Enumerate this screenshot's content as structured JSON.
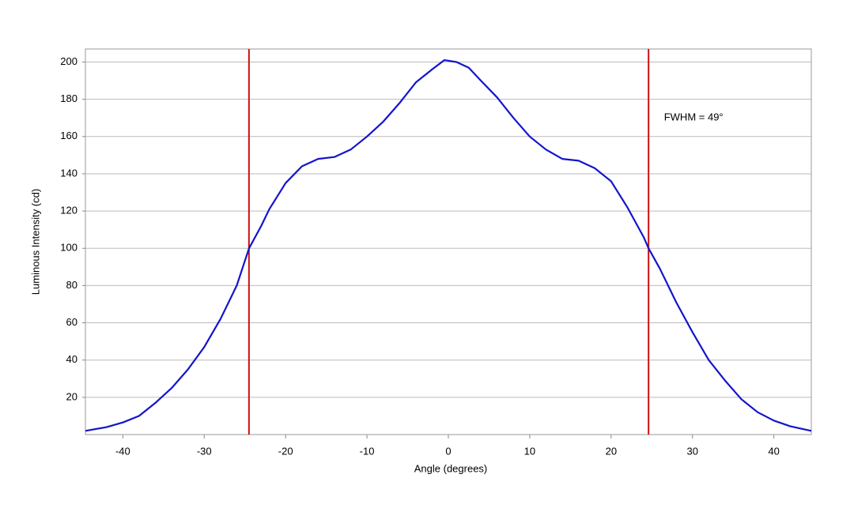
{
  "chart_data": {
    "type": "line",
    "x_label": "Angle (degrees)",
    "y_label": "Luminous Intensity (cd)",
    "annotation": {
      "text": "FWHM = 49°",
      "x": 26.5,
      "y": 170
    },
    "vlines": {
      "color": "#cc1111",
      "x": [
        -24.5,
        24.6
      ]
    },
    "xlim": [
      -44.6,
      44.6
    ],
    "xticks": [
      -40,
      -30,
      -20,
      -10,
      0,
      10,
      20,
      30,
      40
    ],
    "ylim": [
      0,
      207
    ],
    "yticks": [
      20,
      40,
      60,
      80,
      100,
      120,
      140,
      160,
      180,
      200
    ],
    "grid": true,
    "x": [
      -44.6,
      -42,
      -40,
      -38,
      -36,
      -34,
      -32,
      -30,
      -28,
      -26,
      -24.5,
      -23,
      -22,
      -20,
      -18,
      -16,
      -14,
      -12,
      -10,
      -8,
      -6,
      -4,
      -2,
      -0.5,
      1,
      2.5,
      4,
      6,
      8,
      10,
      12,
      14,
      16,
      18,
      20,
      22,
      24,
      24.6,
      26,
      28,
      30,
      32,
      34,
      36,
      38,
      40,
      42,
      44.6
    ],
    "series": [
      {
        "color": "#1414cc",
        "values": [
          2,
          4,
          6.5,
          10,
          17,
          25,
          35,
          47,
          62,
          80,
          100,
          112,
          121,
          135,
          144,
          148,
          149,
          153,
          160,
          168,
          178,
          189,
          196,
          201,
          200,
          197,
          190,
          181,
          170,
          160,
          153,
          148,
          147,
          143,
          136,
          122,
          106,
          100,
          89,
          71,
          55,
          40,
          29,
          19,
          12,
          7.5,
          4.5,
          2
        ]
      }
    ]
  }
}
